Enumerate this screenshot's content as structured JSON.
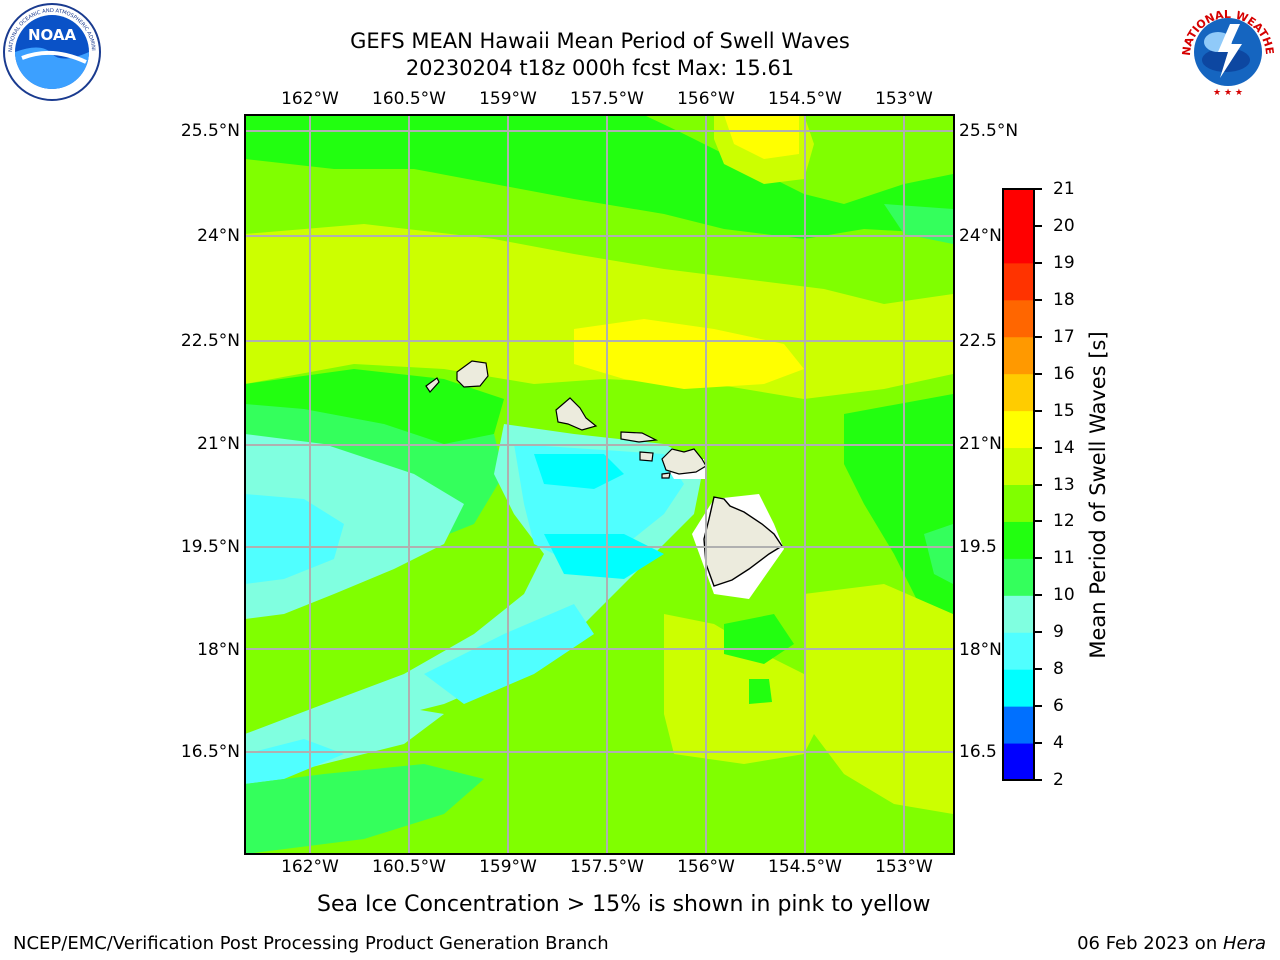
{
  "title": {
    "line1": "GEFS MEAN Hawaii Mean Period of Swell Waves",
    "line2": "20230204 t18z 000h fcst   Max: 15.61"
  },
  "logos": {
    "noaa_text": "NOAA",
    "noaa_ring_text": "NATIONAL OCEANIC AND ATMOSPHERIC ADMINISTRATION · U.S. DEPARTMENT OF COMMERCE",
    "nws_ring_text": "NATIONAL WEATHER SERVICE"
  },
  "map": {
    "lon_labels": [
      "162°W",
      "160.5°W",
      "159°W",
      "157.5°W",
      "156°W",
      "154.5°W",
      "153°W"
    ],
    "lat_labels_left": [
      "25.5°N",
      "24°N",
      "22.5°N",
      "21°N",
      "19.5°N",
      "18°N",
      "16.5°N"
    ],
    "lat_labels_right": [
      "25.5°N",
      "24°N",
      "22.5",
      "21°N",
      "19.5",
      "18°N",
      "16.5"
    ],
    "field_colors": {
      "period_9_10": "#80ffe0",
      "period_8_9": "#50ffff",
      "period_10_11": "#34ff5c",
      "period_11_12": "#22ff10",
      "period_12_13": "#80ff00",
      "period_13_14": "#ccff00",
      "period_14_15": "#ffff00",
      "land": "#ecebdd",
      "missing": "#ffffff",
      "grid": "#b0b0b0"
    }
  },
  "colorbar": {
    "label": "Mean Period of Swell Waves [s]",
    "ticks": [
      "2",
      "4",
      "6",
      "8",
      "9",
      "10",
      "11",
      "12",
      "13",
      "14",
      "15",
      "16",
      "17",
      "18",
      "19",
      "20",
      "21"
    ],
    "colors": [
      "#0000ff",
      "#0070ff",
      "#00ffff",
      "#50ffff",
      "#80ffe0",
      "#34ff5c",
      "#22ff10",
      "#80ff00",
      "#ccff00",
      "#ffff00",
      "#ffcc00",
      "#ff9900",
      "#ff6600",
      "#ff3300",
      "#ff0000",
      "#ff0000"
    ]
  },
  "caption": "Sea Ice Concentration > 15% is shown in pink to yellow",
  "footer": {
    "left": "NCEP/EMC/Verification Post Processing Product Generation Branch",
    "right_prefix": "06 Feb 2023 on ",
    "right_machine": "Hera"
  }
}
